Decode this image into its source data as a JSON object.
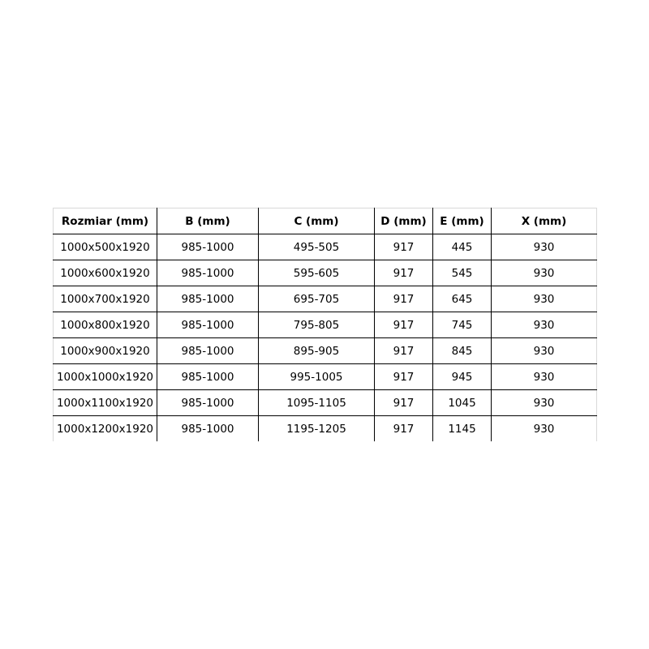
{
  "table": {
    "headers": [
      "Rozmiar (mm)",
      "B (mm)",
      "C (mm)",
      "D (mm)",
      "E (mm)",
      "X (mm)"
    ],
    "rows": [
      [
        "1000x500x1920",
        "985-1000",
        "495-505",
        "917",
        "445",
        "930"
      ],
      [
        "1000x600x1920",
        "985-1000",
        "595-605",
        "917",
        "545",
        "930"
      ],
      [
        "1000x700x1920",
        "985-1000",
        "695-705",
        "917",
        "645",
        "930"
      ],
      [
        "1000x800x1920",
        "985-1000",
        "795-805",
        "917",
        "745",
        "930"
      ],
      [
        "1000x900x1920",
        "985-1000",
        "895-905",
        "917",
        "845",
        "930"
      ],
      [
        "1000x1000x1920",
        "985-1000",
        "995-1005",
        "917",
        "945",
        "930"
      ],
      [
        "1000x1100x1920",
        "985-1000",
        "1095-1105",
        "917",
        "1045",
        "930"
      ],
      [
        "1000x1200x1920",
        "985-1000",
        "1195-1205",
        "917",
        "1145",
        "930"
      ]
    ]
  }
}
